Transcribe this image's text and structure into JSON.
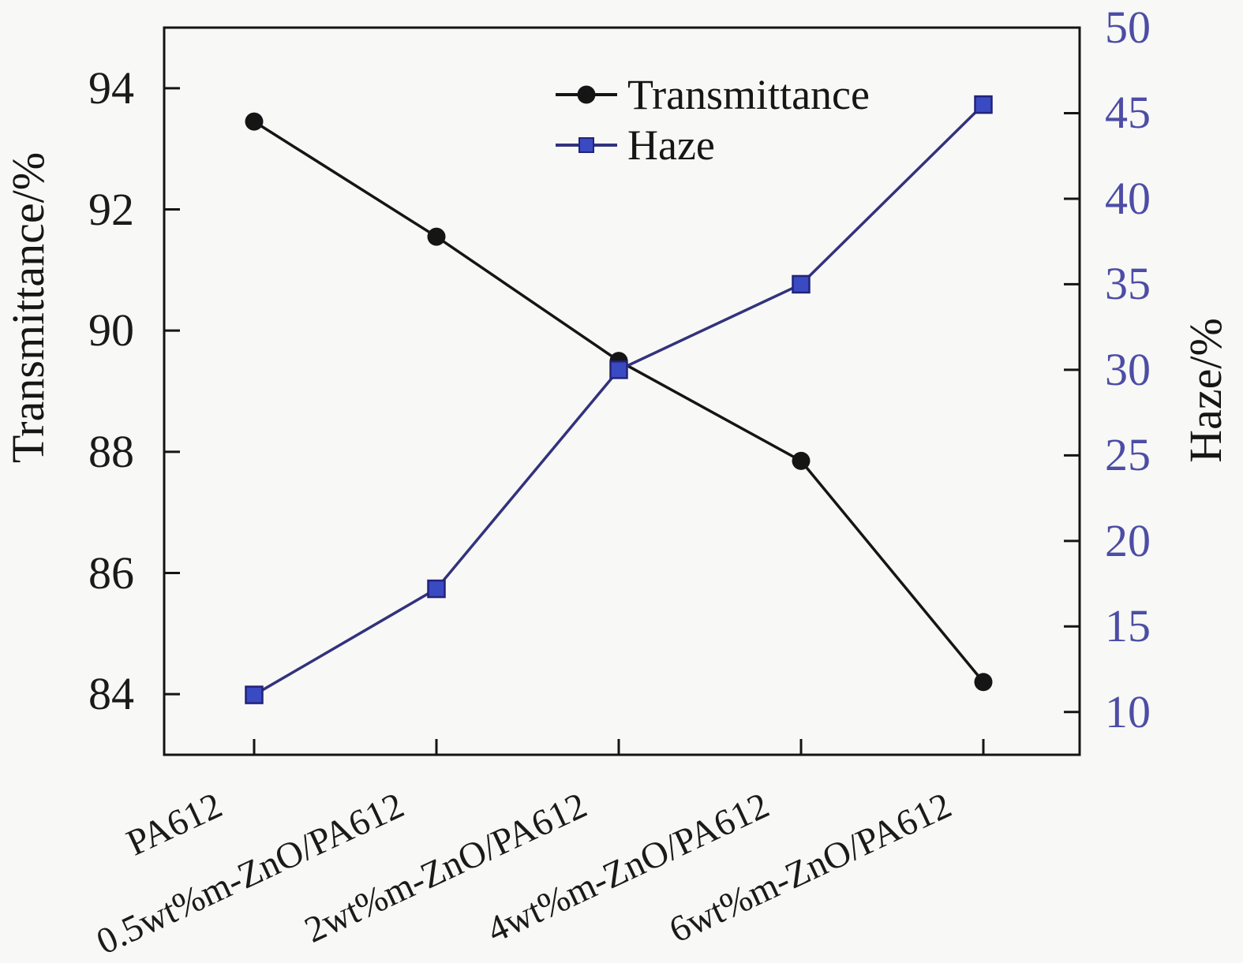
{
  "figure": {
    "background_color": "#f8f8f6",
    "frame_color": "#151515"
  },
  "legend": {
    "items": [
      {
        "label": "Transmittance",
        "marker": "circle-marker-icon",
        "marker_color": "#151515",
        "line_color": "#151515"
      },
      {
        "label": "Haze",
        "marker": "square-marker-icon",
        "marker_color": "#3a4ac2",
        "line_color": "#32327d"
      }
    ]
  },
  "chart_data": {
    "type": "line",
    "categories": [
      "PA612",
      "0.5wt%m-ZnO/PA612",
      "2wt%m-ZnO/PA612",
      "4wt%m-ZnO/PA612",
      "6wt%m-ZnO/PA612"
    ],
    "series": [
      {
        "name": "Transmittance",
        "axis": "left",
        "values": [
          93.45,
          91.55,
          89.5,
          87.85,
          84.2
        ],
        "line_color": "#151515",
        "marker": "circle",
        "marker_color": "#151515"
      },
      {
        "name": "Haze",
        "axis": "right",
        "values": [
          11,
          17.2,
          30,
          35,
          45.5
        ],
        "line_color": "#32327d",
        "marker": "square",
        "marker_color": "#3a4ac2",
        "marker_edge_color": "#23237a"
      }
    ],
    "left_axis": {
      "label": "Transmittance/%",
      "ticks": [
        94,
        92,
        90,
        88,
        86,
        84
      ],
      "range": [
        83,
        95
      ],
      "tick_label_color": "#1a1a1a"
    },
    "right_axis": {
      "label": "Haze/%",
      "ticks": [
        50,
        45,
        40,
        35,
        30,
        25,
        20,
        15,
        10
      ],
      "range": [
        7.5,
        50
      ],
      "tick_label_color": "#4d4da6"
    },
    "x_axis": {
      "tick_label_rotation_deg": -25
    },
    "grid": false,
    "legend_position": "upper center-right inside"
  }
}
